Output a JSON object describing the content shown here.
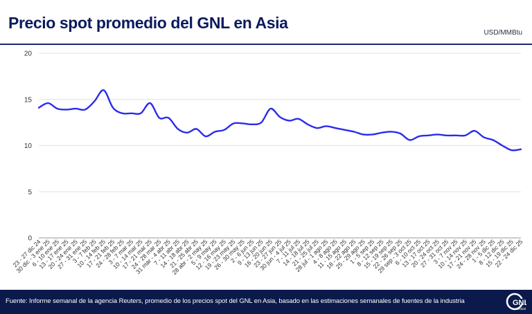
{
  "header": {
    "title": "Precio spot promedio del GNL en Asia",
    "unit": "USD/MMBtu"
  },
  "footer": {
    "source": "Fuente: Informe semanal de la agencia Reuters, promedio de los precios spot del GNL en Asia, basado en las estimaciones semanales de fuentes de la industria",
    "logo_text": "GNL",
    "logo_sub": "Global"
  },
  "colors": {
    "line": "#2b2bea",
    "title": "#0b1a5e",
    "footer_bg": "#0b1a4a",
    "grid": "#e0e0e0"
  },
  "chart_data": {
    "type": "line",
    "title": "Precio spot promedio del GNL en Asia",
    "ylabel": "USD/MMBtu",
    "ylim": [
      0,
      20
    ],
    "yticks": [
      0,
      5,
      10,
      15,
      20
    ],
    "grid": "horizontal",
    "categories": [
      "23 - 27 dic 24",
      "30 dic - 3 ene 25",
      "6 - 10 ene 25",
      "13 - 17 ene 25",
      "20 - 24 ene 25",
      "27 - 31 ene 25",
      "3 - 7 feb 25",
      "10 - 14 feb 25",
      "17 - 21 feb 25",
      "24 - 28 feb 25",
      "3 - 7 mar 25",
      "10 - 14 mar 25",
      "17 - 21 mar 25",
      "24 - 28 mar 25",
      "31 mar - 4 abr 25",
      "7 - 11 abr 25",
      "14 - 18 abr 25",
      "21 - 25 abr 25",
      "28 abr - 2 may 25",
      "5 - 9 may 25",
      "12 - 16 may 25",
      "19 - 23 may 25",
      "26 - 30 may 25",
      "2 - 6 jun 25",
      "9 - 13 jun 25",
      "16 - 20 jun 25",
      "23 - 27 jun 25",
      "30 jun - 4 jul 25",
      "7 - 11 jul 25",
      "14 - 18 jul 25",
      "21 - 25 jul 25",
      "28 jul - 1 ago 25",
      "4 - 8 ago 25",
      "11 - 15 ago 25",
      "18 - 22 ago 25",
      "25 - 29 ago 25",
      "1 - 5 sep 25",
      "8 - 12 sep 25",
      "15 - 19 sep 25",
      "22 - 26 sep 25",
      "29 sep - 3 oct 25",
      "6 - 10 oct 25",
      "13 - 17 oct 25",
      "20 - 24 oct 25",
      "27 - 31 oct 25",
      "3 - 7 nov 25",
      "10 - 14 nov 25",
      "17 - 21 nov 25",
      "24 - 28 nov 25",
      "1 - 5 dic 25",
      "8 - 12 dic 25",
      "15 - 19 dic 25",
      "22 - 24 dic 25"
    ],
    "series": [
      {
        "values": [
          14.1,
          14.6,
          14.0,
          13.9,
          14.0,
          13.9,
          14.8,
          16.0,
          14.1,
          13.5,
          13.5,
          13.5,
          14.6,
          13.0,
          13.0,
          11.8,
          11.4,
          11.8,
          11.0,
          11.5,
          11.7,
          12.4,
          12.4,
          12.3,
          12.5,
          14.0,
          13.1,
          12.7,
          12.9,
          12.3,
          11.9,
          12.1,
          11.9,
          11.7,
          11.5,
          11.2,
          11.2,
          11.4,
          11.5,
          11.3,
          10.6,
          11.0,
          11.1,
          11.2,
          11.1,
          11.1,
          11.1,
          11.6,
          10.9,
          10.6,
          10.0,
          9.5,
          9.6
        ]
      }
    ]
  }
}
